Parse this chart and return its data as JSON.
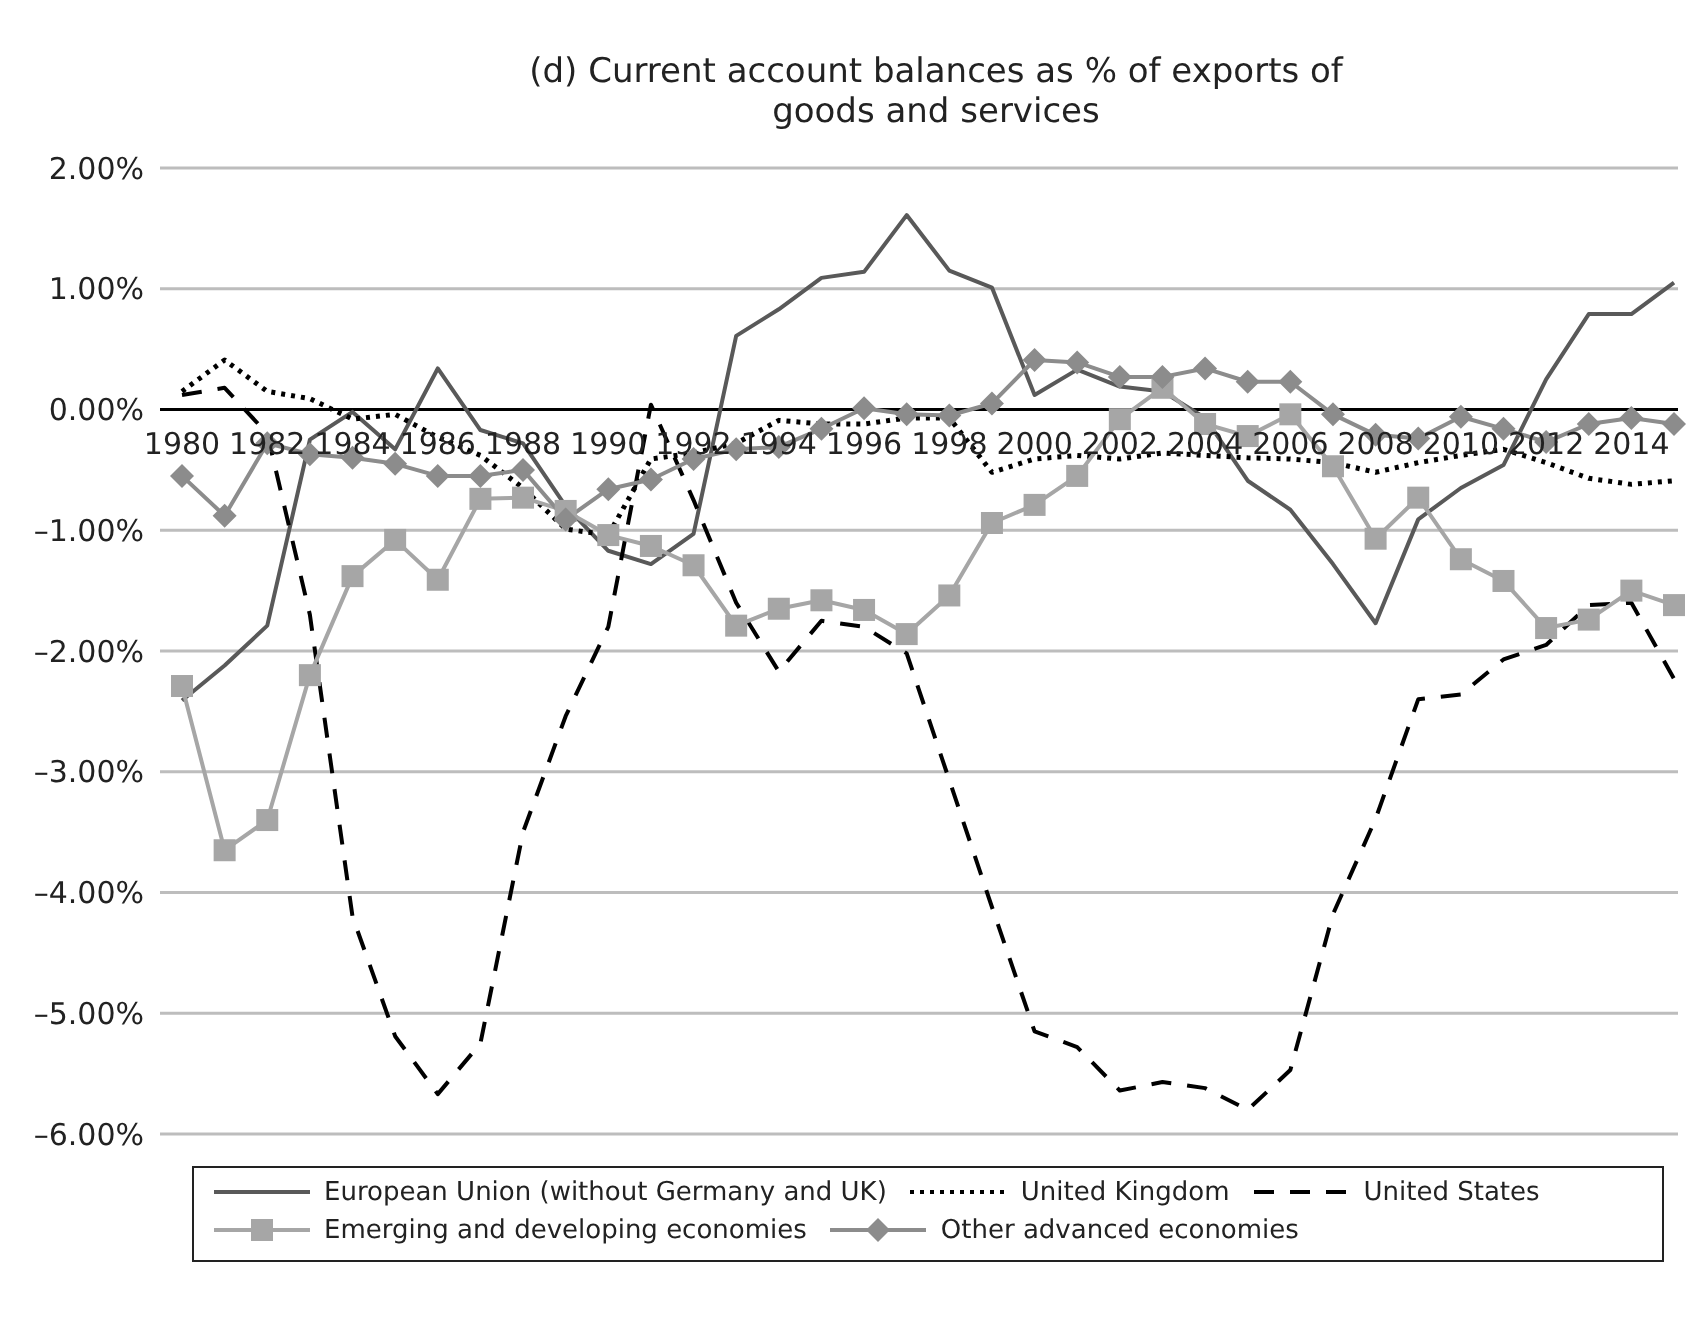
{
  "chart_data": {
    "type": "line",
    "title": "(d) Current account balances as % of exports of goods and services",
    "categories": [
      "1980",
      null,
      "1982",
      null,
      "1984",
      null,
      "1986",
      null,
      "1988",
      null,
      "1990",
      null,
      "1992",
      null,
      "1994",
      null,
      "1996",
      null,
      "1998",
      null,
      "2000",
      null,
      "2002",
      null,
      "2004",
      null,
      "2006",
      null,
      "2008",
      null,
      "2010",
      null,
      "2012",
      null,
      "2014",
      null
    ],
    "ylim": [
      -6,
      2
    ],
    "yticks": [
      {
        "value": -6,
        "label": "–6.00%"
      },
      {
        "value": -5,
        "label": "–5.00%"
      },
      {
        "value": -4,
        "label": "–4.00%"
      },
      {
        "value": -3,
        "label": "–3.00%"
      },
      {
        "value": -2,
        "label": "–2.00%"
      },
      {
        "value": -1,
        "label": "–1.00%"
      },
      {
        "value": 0,
        "label": "0.00%"
      },
      {
        "value": 1,
        "label": "1.00%"
      },
      {
        "value": 2,
        "label": "2.00%"
      }
    ],
    "grid": "y",
    "legend": "bottom",
    "series": [
      {
        "name": "European Union (without Germany and UK)",
        "color": "#595959",
        "marker": "none",
        "line_style": "solid",
        "values": [
          -2.41,
          -2.12,
          -1.79,
          -0.25,
          -0.02,
          -0.33,
          0.34,
          -0.17,
          -0.28,
          -0.8,
          -1.17,
          -1.28,
          -1.03,
          0.61,
          0.83,
          1.09,
          1.14,
          1.61,
          1.15,
          1.01,
          0.12,
          0.33,
          0.19,
          0.15,
          -0.07,
          -0.59,
          -0.83,
          -1.28,
          -1.77,
          -0.91,
          -0.65,
          -0.46,
          0.25,
          0.79,
          0.79,
          1.05
        ]
      },
      {
        "name": "United Kingdom",
        "color": "#000000",
        "marker": "none",
        "line_style": "dotted",
        "values": [
          0.15,
          0.41,
          0.15,
          0.09,
          -0.08,
          -0.04,
          -0.23,
          -0.38,
          -0.65,
          -0.99,
          -1.04,
          -0.41,
          -0.36,
          -0.28,
          -0.09,
          -0.12,
          -0.12,
          -0.07,
          -0.07,
          -0.52,
          -0.41,
          -0.38,
          -0.41,
          -0.36,
          -0.38,
          -0.4,
          -0.41,
          -0.44,
          -0.52,
          -0.44,
          -0.38,
          -0.33,
          -0.44,
          -0.57,
          -0.62,
          -0.59
        ]
      },
      {
        "name": "United States",
        "color": "#000000",
        "marker": "none",
        "line_style": "dashed",
        "values": [
          0.12,
          0.18,
          -0.2,
          -1.7,
          -4.2,
          -5.19,
          -5.67,
          -5.25,
          -3.5,
          -2.54,
          -1.8,
          0.04,
          -0.75,
          -1.6,
          -2.17,
          -1.75,
          -1.8,
          -2.02,
          -3.07,
          -4.12,
          -5.15,
          -5.28,
          -5.64,
          -5.57,
          -5.62,
          -5.8,
          -5.47,
          -4.18,
          -3.39,
          -2.4,
          -2.36,
          -2.07,
          -1.95,
          -1.62,
          -1.6,
          -2.23
        ]
      },
      {
        "name": "Emerging and developing economies",
        "color": "#a6a6a6",
        "marker": "square",
        "line_style": "solid",
        "values": [
          -2.29,
          -3.65,
          -3.4,
          -2.2,
          -1.38,
          -1.08,
          -1.41,
          -0.74,
          -0.73,
          -0.84,
          -1.04,
          -1.13,
          -1.29,
          -1.79,
          -1.65,
          -1.58,
          -1.66,
          -1.86,
          -1.54,
          -0.94,
          -0.79,
          -0.55,
          -0.08,
          0.18,
          -0.12,
          -0.22,
          -0.04,
          -0.47,
          -1.07,
          -0.73,
          -1.24,
          -1.42,
          -1.81,
          -1.74,
          -1.5,
          -1.62
        ]
      },
      {
        "name": "Other advanced economies",
        "color": "#8c8c8c",
        "marker": "diamond",
        "line_style": "solid",
        "values": [
          -0.55,
          -0.88,
          -0.28,
          -0.37,
          -0.4,
          -0.45,
          -0.55,
          -0.55,
          -0.5,
          -0.91,
          -0.66,
          -0.58,
          -0.41,
          -0.33,
          -0.31,
          -0.16,
          0.01,
          -0.04,
          -0.05,
          0.05,
          0.41,
          0.39,
          0.27,
          0.27,
          0.34,
          0.23,
          0.23,
          -0.04,
          -0.21,
          -0.24,
          -0.06,
          -0.16,
          -0.27,
          -0.12,
          -0.07,
          -0.12
        ]
      }
    ]
  }
}
